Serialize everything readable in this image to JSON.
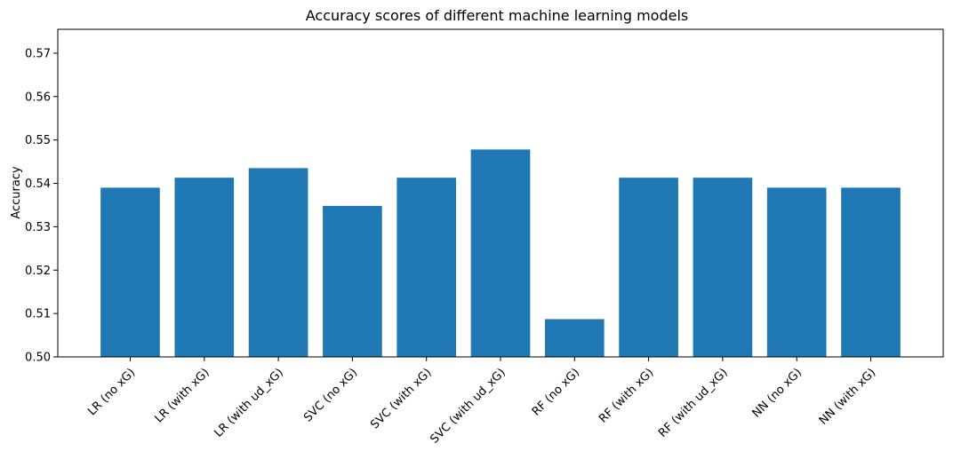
{
  "chart_data": {
    "type": "bar",
    "title": "Accuracy scores of different machine learning models",
    "xlabel": "",
    "ylabel": "Accuracy",
    "categories": [
      "LR (no xG)",
      "LR (with xG)",
      "LR (with ud_xG)",
      "SVC (no xG)",
      "SVC (with xG)",
      "SVC (with ud_xG)",
      "RF (no xG)",
      "RF (with xG)",
      "RF (with ud_xG)",
      "NN (no xG)",
      "NN (with xG)"
    ],
    "values": [
      0.539,
      0.5413,
      0.5435,
      0.5348,
      0.5413,
      0.5478,
      0.5087,
      0.5413,
      0.5413,
      0.539,
      0.539
    ],
    "ylim": [
      0.5,
      0.5755
    ],
    "yticks": [
      0.5,
      0.51,
      0.52,
      0.53,
      0.54,
      0.55,
      0.56,
      0.57
    ],
    "ytick_labels": [
      "0.50",
      "0.51",
      "0.52",
      "0.53",
      "0.54",
      "0.55",
      "0.56",
      "0.57"
    ],
    "xtick_rotation": 45,
    "bar_color": "#1f77b4",
    "grid": false,
    "legend": "none"
  }
}
